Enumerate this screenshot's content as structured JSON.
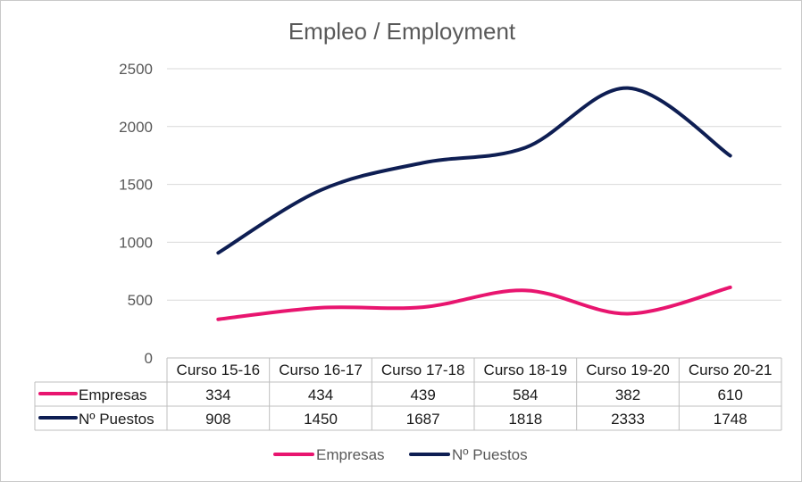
{
  "chart_data": {
    "type": "line",
    "title": "Empleo / Employment",
    "categories": [
      "Curso 15-16",
      "Curso 16-17",
      "Curso 17-18",
      "Curso 18-19",
      "Curso 19-20",
      "Curso 20-21"
    ],
    "series": [
      {
        "name": "Empresas",
        "values": [
          334,
          434,
          439,
          584,
          382,
          610
        ],
        "color": "#e8156f"
      },
      {
        "name": "Nº Puestos",
        "values": [
          908,
          1450,
          1687,
          1818,
          2333,
          1748
        ],
        "color": "#0e1e53"
      }
    ],
    "ylim": [
      0,
      2500
    ],
    "yticks": [
      0,
      500,
      1000,
      1500,
      2000,
      2500
    ],
    "grid": true,
    "smooth": true,
    "data_table": true,
    "legend_position": "bottom"
  }
}
